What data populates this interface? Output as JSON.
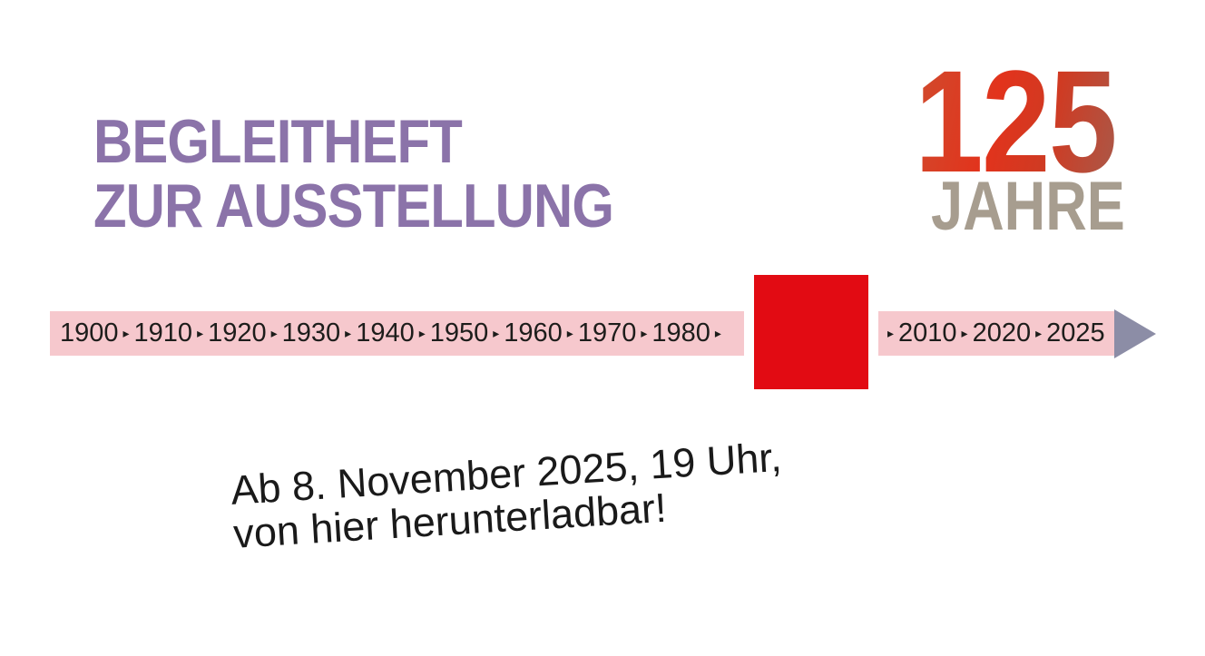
{
  "page": {
    "background_color": "#ffffff"
  },
  "header": {
    "title_line1": "BEGLEITHEFT",
    "title_line2": "ZUR AUSSTELLUNG",
    "title_color": "#8b73a9"
  },
  "logo": {
    "number": "125",
    "subtitle": "JAHRE",
    "number_gradient_colors": [
      "#cf4c2e",
      "#e2331c",
      "#a85a4a"
    ],
    "subtitle_color": "#a79d8f"
  },
  "timeline": {
    "band_color": "#f6c8cd",
    "text_color": "#1d1d1b",
    "separator_glyph": "▸",
    "left_years": [
      "1900",
      "1910",
      "1920",
      "1930",
      "1940",
      "1950",
      "1960",
      "1970",
      "1980"
    ],
    "right_years": [
      "2010",
      "2020",
      "2025"
    ],
    "red_square_color": "#e20b13",
    "arrowhead_color": "#8c8da6"
  },
  "note": {
    "line1": "Ab 8. November 2025, 19 Uhr,",
    "line2": "von hier herunterladbar!",
    "text_color": "#1a1a1a"
  }
}
